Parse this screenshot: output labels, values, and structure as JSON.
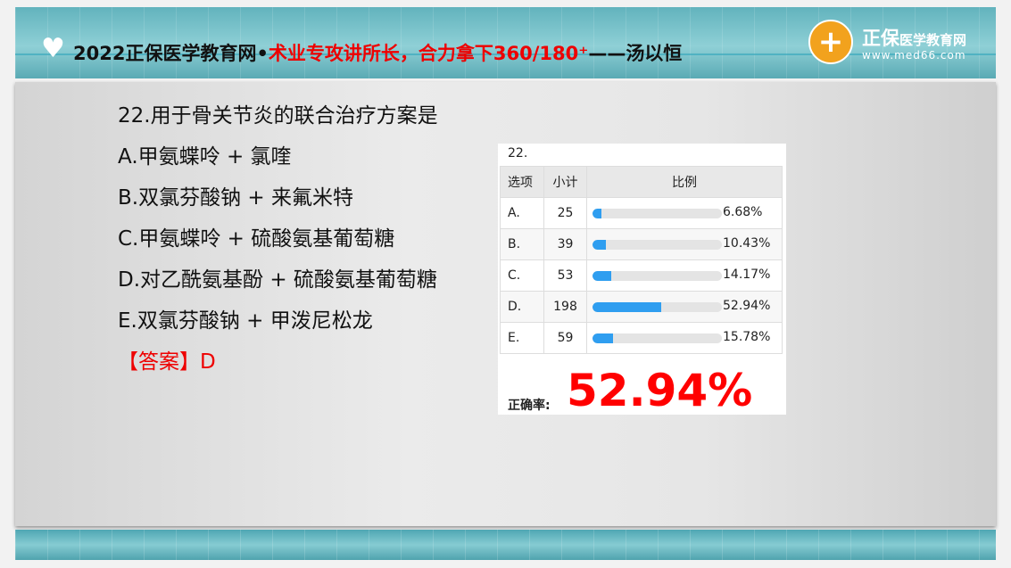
{
  "header": {
    "title_black1": "2022正保医学教育网•",
    "title_red": "术业专攻讲所长，合力拿下360/180⁺",
    "title_black2": "——汤以恒",
    "logo_name": "正保",
    "logo_sub": "医学教育网",
    "logo_url": "www.med66.com",
    "accent": "#e00000"
  },
  "question": {
    "stem": "22.用于骨关节炎的联合治疗方案是",
    "options": [
      "A.甲氨蝶呤 + 氯喹",
      "B.双氯芬酸钠 + 来氟米特",
      "C.甲氨蝶呤 + 硫酸氨基葡萄糖",
      "D.对乙酰氨基酚 + 硫酸氨基葡萄糖",
      "E.双氯芬酸钠 + 甲泼尼松龙"
    ],
    "answer": "【答案】D"
  },
  "stats": {
    "number": "22.",
    "headers": [
      "选项",
      "小计",
      "比例"
    ],
    "rows": [
      {
        "option": "A.",
        "count": "25",
        "pct": "6.68%",
        "value": 6.68
      },
      {
        "option": "B.",
        "count": "39",
        "pct": "10.43%",
        "value": 10.43
      },
      {
        "option": "C.",
        "count": "53",
        "pct": "14.17%",
        "value": 14.17
      },
      {
        "option": "D.",
        "count": "198",
        "pct": "52.94%",
        "value": 52.94
      },
      {
        "option": "E.",
        "count": "59",
        "pct": "15.78%",
        "value": 15.78
      }
    ],
    "rate_label": "正确率:",
    "rate_value": "52.94%",
    "bar_color": "#2f9ef0"
  }
}
